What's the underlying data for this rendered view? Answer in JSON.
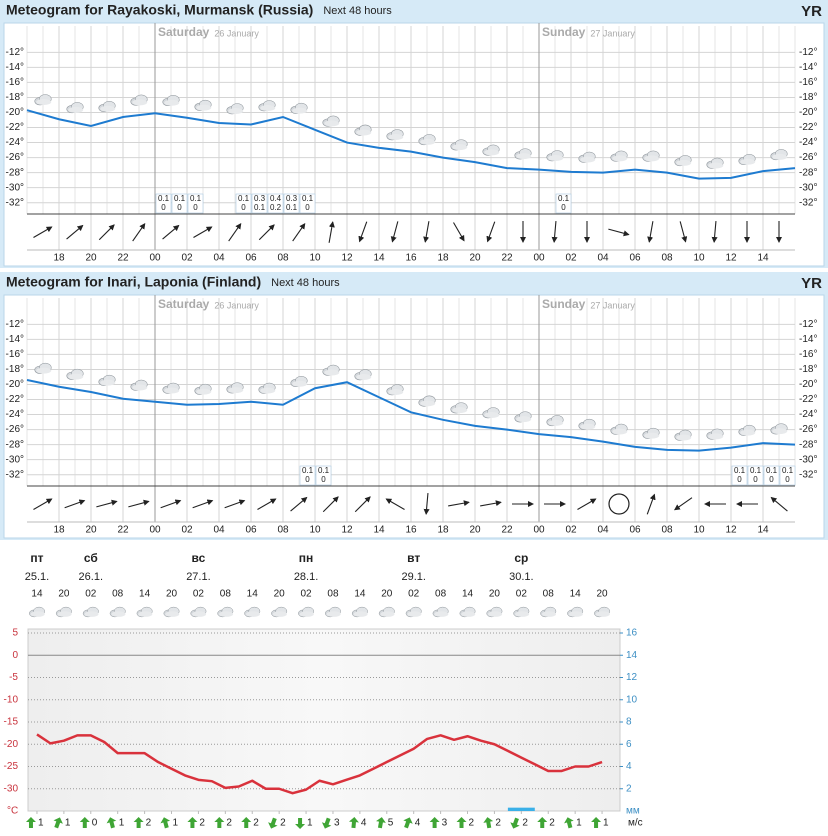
{
  "chart_data": [
    {
      "type": "meteogram",
      "title": "Meteogram for Rayakoski, Murmansk (Russia)",
      "subtitle": "Next 48 hours",
      "logo": "YR",
      "days": [
        {
          "name": "Saturday",
          "date": "26 January",
          "x": 8
        },
        {
          "name": "Sunday",
          "date": "27 January",
          "x": 32
        }
      ],
      "xlim": [
        0,
        48
      ],
      "xticks": [
        {
          "value": 2,
          "label": "18"
        },
        {
          "value": 4,
          "label": "20"
        },
        {
          "value": 6,
          "label": "22"
        },
        {
          "value": 8,
          "label": "00"
        },
        {
          "value": 10,
          "label": "02"
        },
        {
          "value": 12,
          "label": "04"
        },
        {
          "value": 14,
          "label": "06"
        },
        {
          "value": 16,
          "label": "08"
        },
        {
          "value": 18,
          "label": "10"
        },
        {
          "value": 20,
          "label": "12"
        },
        {
          "value": 22,
          "label": "14"
        },
        {
          "value": 24,
          "label": "16"
        },
        {
          "value": 26,
          "label": "18"
        },
        {
          "value": 28,
          "label": "20"
        },
        {
          "value": 30,
          "label": "22"
        },
        {
          "value": 32,
          "label": "00"
        },
        {
          "value": 34,
          "label": "02"
        },
        {
          "value": 36,
          "label": "04"
        },
        {
          "value": 38,
          "label": "06"
        },
        {
          "value": 40,
          "label": "08"
        },
        {
          "value": 42,
          "label": "10"
        },
        {
          "value": 44,
          "label": "12"
        },
        {
          "value": 46,
          "label": "14"
        }
      ],
      "ylim": [
        -33.5,
        -8.5
      ],
      "yticks": [
        {
          "value": -12,
          "label": "-12°"
        },
        {
          "value": -14,
          "label": "-14°"
        },
        {
          "value": -16,
          "label": "-16°"
        },
        {
          "value": -18,
          "label": "-18°"
        },
        {
          "value": -20,
          "label": "-20°"
        },
        {
          "value": -22,
          "label": "-22°"
        },
        {
          "value": -24,
          "label": "-24°"
        },
        {
          "value": -26,
          "label": "-26°"
        },
        {
          "value": -28,
          "label": "-28°"
        },
        {
          "value": -30,
          "label": "-30°"
        },
        {
          "value": -32,
          "label": "-32°"
        }
      ],
      "grid": true,
      "color": "#1e7bd0",
      "x": [
        0,
        2,
        4,
        6,
        8,
        10,
        12,
        14,
        16,
        18,
        20,
        22,
        24,
        26,
        28,
        30,
        32,
        34,
        36,
        38,
        40,
        42,
        44,
        46,
        48
      ],
      "values": [
        -19.7,
        -20.9,
        -21.8,
        -20.6,
        -20.1,
        -20.7,
        -21.4,
        -21.6,
        -20.6,
        -22.3,
        -24,
        -24.7,
        -25.2,
        -26,
        -26.6,
        -27.4,
        -27.6,
        -27.9,
        -28,
        -27.6,
        -28,
        -28.8,
        -28.7,
        -27.8,
        -27.4
      ],
      "precipitation": {
        "x": [
          8,
          9,
          10,
          13,
          14,
          15,
          16,
          17,
          33
        ],
        "max": [
          0.1,
          0.1,
          0.1,
          0.1,
          0.3,
          0.4,
          0.3,
          0.1,
          0.1
        ],
        "min": [
          0,
          0,
          0,
          0,
          0.1,
          0.2,
          0.1,
          0,
          0
        ]
      },
      "wind": {
        "x": [
          1,
          3,
          5,
          7,
          9,
          11,
          13,
          15,
          17,
          19,
          21,
          23,
          25,
          27,
          29,
          31,
          33,
          35,
          37,
          39,
          41,
          43,
          45,
          47
        ],
        "direction": [
          60,
          50,
          45,
          35,
          50,
          60,
          35,
          45,
          35,
          10,
          200,
          195,
          190,
          150,
          200,
          180,
          185,
          180,
          105,
          190,
          165,
          185,
          180,
          180
        ]
      }
    },
    {
      "type": "meteogram",
      "title": "Meteogram for Inari, Laponia (Finland)",
      "subtitle": "Next 48 hours",
      "logo": "YR",
      "days": [
        {
          "name": "Saturday",
          "date": "26 January",
          "x": 8
        },
        {
          "name": "Sunday",
          "date": "27 January",
          "x": 32
        }
      ],
      "xlim": [
        0,
        48
      ],
      "xticks": [
        {
          "value": 2,
          "label": "18"
        },
        {
          "value": 4,
          "label": "20"
        },
        {
          "value": 6,
          "label": "22"
        },
        {
          "value": 8,
          "label": "00"
        },
        {
          "value": 10,
          "label": "02"
        },
        {
          "value": 12,
          "label": "04"
        },
        {
          "value": 14,
          "label": "06"
        },
        {
          "value": 16,
          "label": "08"
        },
        {
          "value": 18,
          "label": "10"
        },
        {
          "value": 20,
          "label": "12"
        },
        {
          "value": 22,
          "label": "14"
        },
        {
          "value": 24,
          "label": "16"
        },
        {
          "value": 26,
          "label": "18"
        },
        {
          "value": 28,
          "label": "20"
        },
        {
          "value": 30,
          "label": "22"
        },
        {
          "value": 32,
          "label": "00"
        },
        {
          "value": 34,
          "label": "02"
        },
        {
          "value": 36,
          "label": "04"
        },
        {
          "value": 38,
          "label": "06"
        },
        {
          "value": 40,
          "label": "08"
        },
        {
          "value": 42,
          "label": "10"
        },
        {
          "value": 44,
          "label": "12"
        },
        {
          "value": 46,
          "label": "14"
        }
      ],
      "ylim": [
        -33.5,
        -8.5
      ],
      "yticks": [
        {
          "value": -12,
          "label": "-12°"
        },
        {
          "value": -14,
          "label": "-14°"
        },
        {
          "value": -16,
          "label": "-16°"
        },
        {
          "value": -18,
          "label": "-18°"
        },
        {
          "value": -20,
          "label": "-20°"
        },
        {
          "value": -22,
          "label": "-22°"
        },
        {
          "value": -24,
          "label": "-24°"
        },
        {
          "value": -26,
          "label": "-26°"
        },
        {
          "value": -28,
          "label": "-28°"
        },
        {
          "value": -30,
          "label": "-30°"
        },
        {
          "value": -32,
          "label": "-32°"
        }
      ],
      "grid": true,
      "color": "#1e7bd0",
      "x": [
        0,
        2,
        4,
        6,
        8,
        10,
        12,
        14,
        16,
        18,
        20,
        22,
        24,
        26,
        28,
        30,
        32,
        34,
        36,
        38,
        40,
        42,
        44,
        46,
        48
      ],
      "values": [
        -19.4,
        -20.3,
        -21,
        -21.9,
        -22.3,
        -22.7,
        -22.6,
        -22.3,
        -22.7,
        -20.5,
        -19.7,
        -21.7,
        -23.7,
        -24.7,
        -25.5,
        -26,
        -26.6,
        -27,
        -27.6,
        -28.3,
        -28.7,
        -28.8,
        -28.4,
        -27.8,
        -28
      ],
      "precipitation": {
        "x": [
          17,
          18,
          44,
          45,
          46,
          47
        ],
        "max": [
          0.1,
          0.1,
          0.1,
          0.1,
          0.1,
          0.1
        ],
        "min": [
          0,
          0,
          0,
          0,
          0,
          0
        ]
      },
      "wind": {
        "x": [
          1,
          3,
          5,
          7,
          9,
          11,
          13,
          15,
          17,
          19,
          21,
          23,
          25,
          27,
          29,
          31,
          33,
          35,
          37,
          39,
          41,
          43,
          45,
          47
        ],
        "direction": [
          60,
          70,
          75,
          75,
          70,
          70,
          70,
          60,
          50,
          45,
          45,
          300,
          185,
          80,
          80,
          90,
          90,
          60,
          null,
          20,
          235,
          270,
          270,
          310
        ]
      }
    },
    {
      "type": "line",
      "days": {
        "names": [
          "пт",
          "сб",
          "вс",
          "пн",
          "вт",
          "ср"
        ],
        "dates": [
          "25.1.",
          "26.1.",
          "27.1.",
          "28.1.",
          "29.1.",
          "30.1."
        ],
        "x": [
          0,
          12,
          36,
          60,
          84,
          108
        ]
      },
      "xlim": [
        -2,
        130
      ],
      "xticks": [
        {
          "value": 0,
          "label": "14"
        },
        {
          "value": 6,
          "label": "20"
        },
        {
          "value": 12,
          "label": "02"
        },
        {
          "value": 18,
          "label": "08"
        },
        {
          "value": 24,
          "label": "14"
        },
        {
          "value": 30,
          "label": "20"
        },
        {
          "value": 36,
          "label": "02"
        },
        {
          "value": 42,
          "label": "08"
        },
        {
          "value": 48,
          "label": "14"
        },
        {
          "value": 54,
          "label": "20"
        },
        {
          "value": 60,
          "label": "02"
        },
        {
          "value": 66,
          "label": "08"
        },
        {
          "value": 72,
          "label": "14"
        },
        {
          "value": 78,
          "label": "20"
        },
        {
          "value": 84,
          "label": "02"
        },
        {
          "value": 90,
          "label": "08"
        },
        {
          "value": 96,
          "label": "14"
        },
        {
          "value": 102,
          "label": "20"
        },
        {
          "value": 108,
          "label": "02"
        },
        {
          "value": 114,
          "label": "08"
        },
        {
          "value": 120,
          "label": "14"
        },
        {
          "value": 126,
          "label": "20"
        }
      ],
      "ylim": [
        -35,
        5
      ],
      "yticks": [
        5,
        0,
        -5,
        -10,
        -15,
        -20,
        -25,
        -30
      ],
      "y_unit": "°С",
      "y2lim": [
        0,
        16
      ],
      "y2ticks": [
        16,
        14,
        12,
        10,
        8,
        6,
        4,
        2
      ],
      "y2_unit": "мм",
      "grid": true,
      "color": "#d9323c",
      "x": [
        0,
        3,
        6,
        9,
        12,
        15,
        18,
        21,
        24,
        27,
        30,
        33,
        36,
        39,
        42,
        45,
        48,
        51,
        54,
        57,
        60,
        63,
        66,
        69,
        72,
        75,
        78,
        81,
        84,
        87,
        90,
        93,
        96,
        99,
        102,
        105,
        108,
        111,
        114,
        117,
        120,
        123,
        126
      ],
      "values": [
        -17.8,
        -19.8,
        -19.2,
        -18,
        -18,
        -19.5,
        -22,
        -22,
        -22,
        -24,
        -25.5,
        -27,
        -28,
        -28.3,
        -29.8,
        -29.5,
        -28.2,
        -30,
        -30,
        -31,
        -30.2,
        -28.2,
        -29,
        -28,
        -27,
        -25.5,
        -24,
        -22.5,
        -21,
        -18.8,
        -18,
        -19,
        -18.2,
        -19.2,
        -20,
        -21.5,
        -23,
        -24.5,
        -26,
        -26,
        -25,
        -25,
        -24
      ],
      "precipitation": {
        "axis": "y2",
        "color": "#3ab0e8",
        "x": [
          108
        ],
        "values": [
          0.3
        ]
      },
      "wind": {
        "unit": "м/с",
        "color": "#3fa535",
        "x": [
          0,
          6,
          12,
          18,
          24,
          30,
          36,
          42,
          48,
          54,
          60,
          66,
          72,
          78,
          84,
          90,
          96,
          102,
          108,
          114,
          120,
          126
        ],
        "speed": [
          1,
          1,
          0,
          1,
          2,
          1,
          2,
          2,
          2,
          2,
          1,
          3,
          4,
          5,
          4,
          3,
          2,
          2,
          2,
          2,
          1,
          1
        ],
        "direction": [
          180,
          200,
          180,
          165,
          180,
          165,
          180,
          180,
          180,
          20,
          0,
          20,
          185,
          190,
          200,
          180,
          180,
          170,
          20,
          180,
          165,
          180
        ]
      }
    }
  ]
}
